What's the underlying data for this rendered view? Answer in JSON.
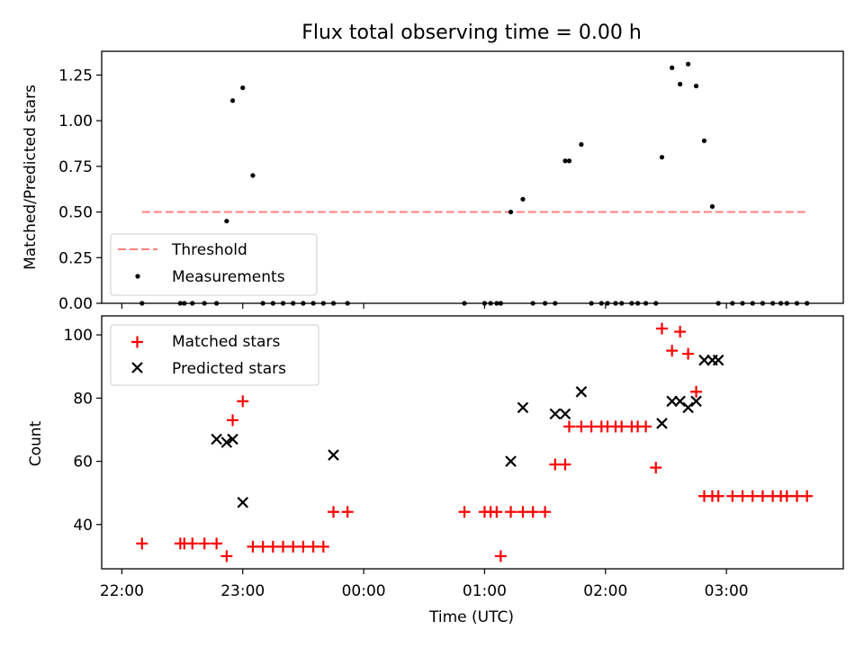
{
  "chart_data": [
    {
      "type": "scatter",
      "title": "Flux total observing time = 0.00 h",
      "ylabel": "Matched/Predicted stars",
      "xlabel": "",
      "ylim": [
        0,
        1.38
      ],
      "yticks": [
        "0.00",
        "0.25",
        "0.50",
        "0.75",
        "1.00",
        "1.25"
      ],
      "ytick_values": [
        0,
        0.25,
        0.5,
        0.75,
        1.0,
        1.25
      ],
      "legend_placement": "lower-left",
      "colors": {
        "threshold": "#ff7f7f",
        "measurements": "#000000"
      },
      "threshold": {
        "name": "Threshold",
        "value": 0.5,
        "x_start": "22:10",
        "x_end": "03:40"
      },
      "series": [
        {
          "name": "Measurements",
          "x": [
            "22:10",
            "22:29",
            "22:31",
            "22:35",
            "22:41",
            "22:47",
            "22:52",
            "22:55",
            "23:00",
            "23:05",
            "23:10",
            "23:15",
            "23:20",
            "23:25",
            "23:30",
            "23:35",
            "23:40",
            "23:45",
            "23:52",
            "00:50",
            "01:00",
            "01:03",
            "01:06",
            "01:08",
            "01:13",
            "01:19",
            "01:24",
            "01:30",
            "01:35",
            "01:40",
            "01:42",
            "01:48",
            "01:53",
            "01:58",
            "02:01",
            "02:05",
            "02:08",
            "02:13",
            "02:16",
            "02:20",
            "02:25",
            "02:28",
            "02:33",
            "02:37",
            "02:41",
            "02:45",
            "02:49",
            "02:53",
            "02:56",
            "03:03",
            "03:08",
            "03:13",
            "03:18",
            "03:23",
            "03:27",
            "03:30",
            "03:35",
            "03:40"
          ],
          "y": [
            0,
            0,
            0,
            0,
            0,
            0,
            0.45,
            1.11,
            1.18,
            0.7,
            0,
            0,
            0,
            0,
            0,
            0,
            0,
            0,
            0,
            0,
            0,
            0,
            0,
            0,
            0.5,
            0.57,
            0,
            0,
            0,
            0.78,
            0.78,
            0.87,
            0,
            0,
            0,
            0,
            0,
            0,
            0,
            0,
            0,
            0.8,
            1.29,
            1.2,
            1.31,
            1.19,
            0.89,
            0.53,
            0,
            0,
            0,
            0,
            0,
            0,
            0,
            0,
            0,
            0
          ]
        }
      ]
    },
    {
      "type": "scatter",
      "title": "",
      "ylabel": "Count",
      "xlabel": "Time (UTC)",
      "ylim": [
        26,
        106
      ],
      "yticks": [
        "40",
        "60",
        "80",
        "100"
      ],
      "ytick_values": [
        40,
        60,
        80,
        100
      ],
      "xlim": [
        "21:50",
        "03:58"
      ],
      "xticks": [
        "22:00",
        "23:00",
        "00:00",
        "01:00",
        "02:00",
        "03:00"
      ],
      "xtick_values": [
        "22:00",
        "23:00",
        "00:00",
        "01:00",
        "02:00",
        "03:00"
      ],
      "legend_placement": "top-left",
      "colors": {
        "matched": "#ff0000",
        "predicted": "#000000"
      },
      "series": [
        {
          "name": "Matched stars",
          "marker": "plus",
          "x": [
            "22:10",
            "22:29",
            "22:31",
            "22:35",
            "22:41",
            "22:47",
            "22:52",
            "22:55",
            "23:00",
            "23:05",
            "23:10",
            "23:15",
            "23:20",
            "23:25",
            "23:30",
            "23:35",
            "23:40",
            "23:45",
            "23:52",
            "00:50",
            "01:00",
            "01:03",
            "01:06",
            "01:08",
            "01:13",
            "01:19",
            "01:24",
            "01:30",
            "01:35",
            "01:40",
            "01:42",
            "01:48",
            "01:53",
            "01:58",
            "02:01",
            "02:05",
            "02:08",
            "02:13",
            "02:16",
            "02:20",
            "02:25",
            "02:28",
            "02:33",
            "02:37",
            "02:41",
            "02:45",
            "02:49",
            "02:53",
            "02:56",
            "03:03",
            "03:08",
            "03:13",
            "03:18",
            "03:23",
            "03:27",
            "03:30",
            "03:35",
            "03:40"
          ],
          "y": [
            34,
            34,
            34,
            34,
            34,
            34,
            30,
            73,
            79,
            33,
            33,
            33,
            33,
            33,
            33,
            33,
            33,
            44,
            44,
            44,
            44,
            44,
            44,
            30,
            44,
            44,
            44,
            44,
            59,
            59,
            71,
            71,
            71,
            71,
            71,
            71,
            71,
            71,
            71,
            71,
            58,
            102,
            95,
            101,
            94,
            82,
            49,
            49,
            49,
            49,
            49,
            49,
            49,
            49,
            49,
            49,
            49,
            49
          ]
        },
        {
          "name": "Predicted stars",
          "marker": "x",
          "x": [
            "22:47",
            "22:52",
            "22:55",
            "23:00",
            "23:45",
            "01:13",
            "01:19",
            "01:35",
            "01:40",
            "01:48",
            "02:28",
            "02:33",
            "02:37",
            "02:41",
            "02:45",
            "02:49",
            "02:53",
            "02:56"
          ],
          "y": [
            67,
            66,
            67,
            47,
            62,
            60,
            77,
            75,
            75,
            82,
            72,
            79,
            79,
            77,
            79,
            92,
            92,
            92
          ]
        }
      ]
    }
  ]
}
